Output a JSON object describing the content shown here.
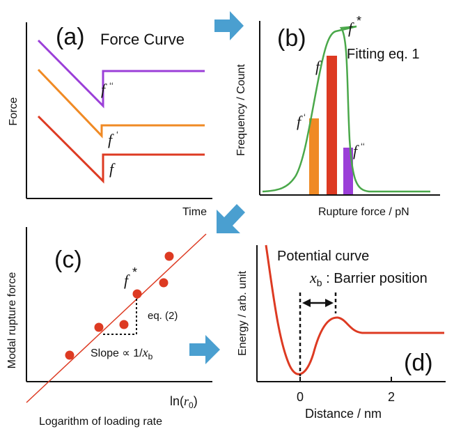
{
  "panel_a": {
    "letter": "(a)",
    "title": "Force Curve",
    "ylabel": "Force",
    "xlabel": "Time",
    "curve_labels": {
      "top": "f",
      "top_mark": "ʻʻ",
      "mid": "f",
      "mid_mark": "ʻ",
      "bottom": "f"
    },
    "colors": {
      "top": "#9b3fd8",
      "mid": "#f08a24",
      "bottom": "#dd3a22"
    }
  },
  "panel_b": {
    "letter": "(b)",
    "fit_label": "Fitting eq. 1",
    "ylabel": "Frequency / Count",
    "xlabel": "Rupture force / pN",
    "peak_label": "f",
    "peak_sup": "*",
    "bar_labels": {
      "left": "f",
      "left_mark": "ʻ",
      "center": "f",
      "right": "f",
      "right_mark": "ʻʻ"
    },
    "colors": {
      "fit": "#4aa84a",
      "bar_left": "#f08a24",
      "bar_center": "#dd3a22",
      "bar_right": "#9b3fd8"
    }
  },
  "panel_c": {
    "letter": "(c)",
    "ylabel": "Modal rupture force",
    "xlabel_main": "ln(",
    "xlabel_var": "r",
    "xlabel_sub": "0",
    "xlabel_close": ")",
    "caption": "Logarithm of loading rate",
    "point_label": "f",
    "point_sup": "*",
    "eq_label": "eq. (2)",
    "slope_text": "Slope ∝ 1/",
    "slope_var": "x",
    "slope_sub": "b",
    "colors": {
      "points": "#dd3a22",
      "fit_line": "#dd3a22"
    }
  },
  "panel_d": {
    "letter": "(d)",
    "title": "Potential curve",
    "barrier_var": "x",
    "barrier_sub": "b",
    "barrier_text": " : Barrier position",
    "ylabel": "Energy / arb. unit",
    "xlabel": "Distance / nm",
    "ticks": [
      "0",
      "2"
    ],
    "colors": {
      "curve": "#dd3a22"
    }
  },
  "arrows": {
    "color": "#4a9fd0"
  }
}
